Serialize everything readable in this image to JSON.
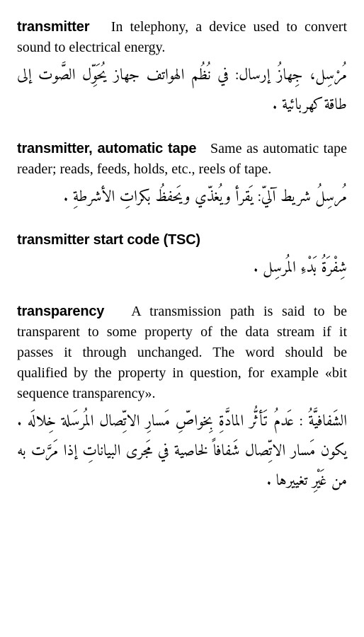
{
  "entries": [
    {
      "term": "transmitter",
      "def_en": "In telephony, a device used to convert sound to electrical energy.",
      "def_ar": "مُرْسِل، جِهازُ إرسال: في نُظُم الهواتف جهاز يُحَوِّل الصَّوت إلى طاقة كهربائية ."
    },
    {
      "term": "transmitter, automatic tape",
      "def_en": "Same as automatic tape reader; reads, feeds, holds, etc., reels of tape.",
      "def_ar": "مُرسِلُ شريط آليّ: يَقرأ ويُغذّي ويَحفظُ بكراتِ الأشرطةِ ."
    },
    {
      "term": "transmitter start code (TSC)",
      "def_en": "",
      "def_ar": "شِفْرَةُ بَدْءِ المُرسِل ."
    },
    {
      "term": "transparency",
      "def_en": "A transmission path is said to be transparent to some property of the data stream if it passes it through unchanged. The word should be qualified by the property in question, for example «bit sequence transparency».",
      "def_ar": "الشَفافيَّةُ : عَدمُ تَأثُّر المادَّةِ بِخواصِّ مَسارِ الاتِّصال المُرسَلة خِلالَه . يكون مَسار الاتِّصال شَفافاً لخاصية في مَجرى البياناتِ إذا مَرَّت به من غَيْرِ تغييرها ."
    }
  ]
}
